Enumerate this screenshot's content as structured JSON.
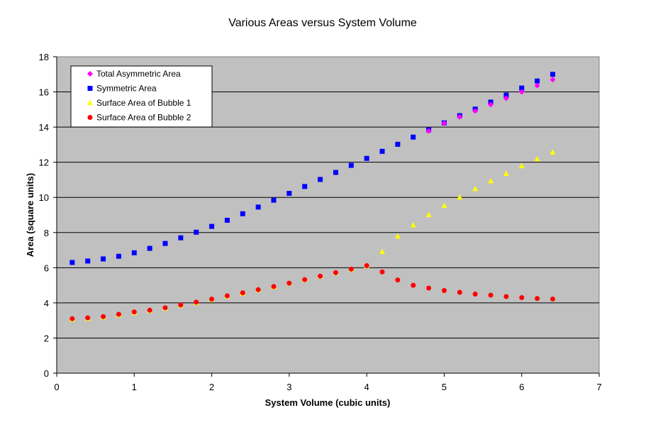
{
  "chart_data": {
    "type": "scatter",
    "title": "Various Areas versus System Volume",
    "xlabel": "System Volume (cubic units)",
    "ylabel": "Area (square units)",
    "xlim": [
      0,
      7
    ],
    "ylim": [
      0,
      18
    ],
    "x_ticks": [
      0,
      1,
      2,
      3,
      4,
      5,
      6,
      7
    ],
    "y_ticks": [
      0,
      2,
      4,
      6,
      8,
      10,
      12,
      14,
      16,
      18
    ],
    "grid": "horizontal major gridlines",
    "plot_background": "#c0c0c0",
    "legend_position": "top-left",
    "series": [
      {
        "name": "Total Asymmetric Area",
        "marker": "diamond",
        "color": "#ff00ff",
        "points": [
          [
            4.8,
            13.78
          ],
          [
            5.0,
            14.22
          ],
          [
            5.2,
            14.58
          ],
          [
            5.4,
            14.92
          ],
          [
            5.6,
            15.28
          ],
          [
            5.8,
            15.64
          ],
          [
            6.0,
            16.0
          ],
          [
            6.2,
            16.36
          ],
          [
            6.4,
            16.7
          ]
        ]
      },
      {
        "name": "Symmetric Area",
        "marker": "square",
        "color": "#0000ff",
        "points": [
          [
            0.2,
            6.3
          ],
          [
            0.4,
            6.38
          ],
          [
            0.6,
            6.5
          ],
          [
            0.8,
            6.65
          ],
          [
            1.0,
            6.85
          ],
          [
            1.2,
            7.1
          ],
          [
            1.4,
            7.38
          ],
          [
            1.6,
            7.7
          ],
          [
            1.8,
            8.02
          ],
          [
            2.0,
            8.35
          ],
          [
            2.2,
            8.7
          ],
          [
            2.4,
            9.07
          ],
          [
            2.6,
            9.45
          ],
          [
            2.8,
            9.84
          ],
          [
            3.0,
            10.23
          ],
          [
            3.2,
            10.62
          ],
          [
            3.4,
            11.02
          ],
          [
            3.6,
            11.42
          ],
          [
            3.8,
            11.82
          ],
          [
            4.0,
            12.22
          ],
          [
            4.2,
            12.62
          ],
          [
            4.4,
            13.02
          ],
          [
            4.6,
            13.43
          ],
          [
            4.8,
            13.84
          ],
          [
            5.0,
            14.24
          ],
          [
            5.2,
            14.65
          ],
          [
            5.4,
            15.02
          ],
          [
            5.6,
            15.42
          ],
          [
            5.8,
            15.82
          ],
          [
            6.0,
            16.22
          ],
          [
            6.2,
            16.62
          ],
          [
            6.4,
            17.0
          ]
        ]
      },
      {
        "name": "Surface Area of Bubble 1",
        "marker": "triangle",
        "color": "#ffff00",
        "points": [
          [
            0.2,
            3.05
          ],
          [
            0.4,
            3.1
          ],
          [
            0.6,
            3.18
          ],
          [
            0.8,
            3.3
          ],
          [
            1.0,
            3.42
          ],
          [
            1.2,
            3.55
          ],
          [
            1.4,
            3.68
          ],
          [
            1.6,
            3.84
          ],
          [
            1.8,
            4.0
          ],
          [
            2.0,
            4.18
          ],
          [
            2.2,
            4.36
          ],
          [
            2.4,
            4.53
          ],
          [
            2.6,
            4.72
          ],
          [
            2.8,
            4.9
          ],
          [
            3.0,
            5.1
          ],
          [
            3.2,
            5.3
          ],
          [
            3.4,
            5.5
          ],
          [
            3.6,
            5.7
          ],
          [
            3.8,
            5.9
          ],
          [
            4.0,
            6.1
          ],
          [
            4.2,
            6.9
          ],
          [
            4.4,
            7.78
          ],
          [
            4.6,
            8.42
          ],
          [
            4.8,
            9.0
          ],
          [
            5.0,
            9.52
          ],
          [
            5.2,
            10.0
          ],
          [
            5.4,
            10.48
          ],
          [
            5.6,
            10.92
          ],
          [
            5.8,
            11.34
          ],
          [
            6.0,
            11.78
          ],
          [
            6.2,
            12.18
          ],
          [
            6.4,
            12.56
          ]
        ]
      },
      {
        "name": "Surface Area of Bubble 2",
        "marker": "circle",
        "color": "#ff0000",
        "points": [
          [
            0.2,
            3.1
          ],
          [
            0.4,
            3.15
          ],
          [
            0.6,
            3.22
          ],
          [
            0.8,
            3.35
          ],
          [
            1.0,
            3.48
          ],
          [
            1.2,
            3.58
          ],
          [
            1.4,
            3.72
          ],
          [
            1.6,
            3.88
          ],
          [
            1.8,
            4.04
          ],
          [
            2.0,
            4.21
          ],
          [
            2.2,
            4.4
          ],
          [
            2.4,
            4.57
          ],
          [
            2.6,
            4.75
          ],
          [
            2.8,
            4.93
          ],
          [
            3.0,
            5.12
          ],
          [
            3.2,
            5.32
          ],
          [
            3.4,
            5.52
          ],
          [
            3.6,
            5.72
          ],
          [
            3.8,
            5.92
          ],
          [
            4.0,
            6.12
          ],
          [
            4.2,
            5.76
          ],
          [
            4.4,
            5.3
          ],
          [
            4.6,
            5.0
          ],
          [
            4.8,
            4.84
          ],
          [
            5.0,
            4.7
          ],
          [
            5.2,
            4.6
          ],
          [
            5.4,
            4.5
          ],
          [
            5.6,
            4.44
          ],
          [
            5.8,
            4.36
          ],
          [
            6.0,
            4.3
          ],
          [
            6.2,
            4.25
          ],
          [
            6.4,
            4.22
          ]
        ]
      }
    ]
  }
}
